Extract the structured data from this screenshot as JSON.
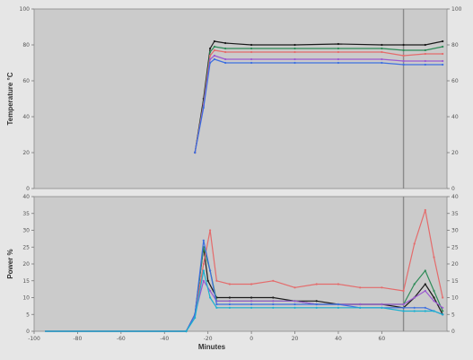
{
  "chart_data": [
    {
      "type": "line",
      "title": "",
      "xlabel": "",
      "ylabel": "Temperature °C",
      "ylim": [
        0,
        100
      ],
      "xlim": [
        -100,
        90
      ],
      "yticks": [
        0,
        20,
        40,
        60,
        80,
        100
      ],
      "ytick_labels": [
        "0",
        "20",
        "40",
        "60",
        "80",
        "100"
      ],
      "right_ytick_labels": [
        "0",
        "20",
        "40",
        "60",
        "80",
        "100"
      ],
      "vertical_marker_x": 70,
      "grid": false,
      "legend": "none",
      "series": [
        {
          "color": "#1a1a1a",
          "points": [
            [
              -26,
              20
            ],
            [
              -22,
              50
            ],
            [
              -19,
              78
            ],
            [
              -17,
              82
            ],
            [
              -12,
              81
            ],
            [
              0,
              80
            ],
            [
              20,
              80
            ],
            [
              40,
              80.5
            ],
            [
              60,
              80
            ],
            [
              70,
              80
            ],
            [
              80,
              80
            ],
            [
              88,
              82
            ]
          ]
        },
        {
          "color": "#2e8b57",
          "points": [
            [
              -26,
              20
            ],
            [
              -22,
              48
            ],
            [
              -19,
              76
            ],
            [
              -17,
              79
            ],
            [
              -12,
              78
            ],
            [
              0,
              78
            ],
            [
              20,
              78
            ],
            [
              40,
              78
            ],
            [
              60,
              78
            ],
            [
              70,
              77
            ],
            [
              80,
              77
            ],
            [
              88,
              79
            ]
          ]
        },
        {
          "color": "#e46b6b",
          "points": [
            [
              -26,
              20
            ],
            [
              -22,
              47
            ],
            [
              -19,
              74
            ],
            [
              -17,
              77
            ],
            [
              -12,
              76
            ],
            [
              0,
              76
            ],
            [
              20,
              76
            ],
            [
              40,
              76
            ],
            [
              60,
              76
            ],
            [
              70,
              74
            ],
            [
              80,
              75
            ],
            [
              88,
              75
            ]
          ]
        },
        {
          "color": "#9b59d0",
          "points": [
            [
              -26,
              20
            ],
            [
              -22,
              46
            ],
            [
              -19,
              72
            ],
            [
              -17,
              74
            ],
            [
              -12,
              72
            ],
            [
              0,
              72
            ],
            [
              20,
              72
            ],
            [
              40,
              72
            ],
            [
              60,
              72
            ],
            [
              70,
              71
            ],
            [
              80,
              71
            ],
            [
              88,
              71
            ]
          ]
        },
        {
          "color": "#3d6fe0",
          "points": [
            [
              -26,
              20
            ],
            [
              -22,
              45
            ],
            [
              -19,
              70
            ],
            [
              -17,
              72
            ],
            [
              -12,
              70
            ],
            [
              0,
              70
            ],
            [
              20,
              70
            ],
            [
              40,
              70
            ],
            [
              60,
              70
            ],
            [
              70,
              69
            ],
            [
              80,
              69
            ],
            [
              88,
              69
            ]
          ]
        }
      ]
    },
    {
      "type": "line",
      "title": "",
      "xlabel": "Minutes",
      "ylabel": "Power %",
      "ylim": [
        0,
        40
      ],
      "xlim": [
        -100,
        90
      ],
      "yticks": [
        0,
        5,
        10,
        15,
        20,
        25,
        30,
        35,
        40
      ],
      "ytick_labels": [
        "0",
        "5",
        "10",
        "15",
        "20",
        "25",
        "30",
        "35",
        "40"
      ],
      "right_ytick_labels": [
        "0",
        "5",
        "10",
        "15",
        "20",
        "25",
        "30",
        "35",
        "40"
      ],
      "xticks": [
        -100,
        -80,
        -60,
        -40,
        -20,
        0,
        20,
        40,
        60
      ],
      "xtick_labels": [
        "-100",
        "-80",
        "-60",
        "-40",
        "-20",
        "0",
        "20",
        "40",
        "60"
      ],
      "vertical_marker_x": 70,
      "grid": false,
      "legend": "none",
      "series": [
        {
          "color": "#1a1a1a",
          "points": [
            [
              -95,
              0
            ],
            [
              -30,
              0
            ],
            [
              -26,
              5
            ],
            [
              -22,
              25
            ],
            [
              -20,
              15
            ],
            [
              -16,
              10
            ],
            [
              -10,
              10
            ],
            [
              0,
              10
            ],
            [
              10,
              10
            ],
            [
              20,
              9
            ],
            [
              30,
              9
            ],
            [
              40,
              8
            ],
            [
              50,
              8
            ],
            [
              60,
              8
            ],
            [
              70,
              7
            ],
            [
              75,
              10
            ],
            [
              80,
              14
            ],
            [
              84,
              10
            ],
            [
              88,
              5
            ]
          ]
        },
        {
          "color": "#2e8b57",
          "points": [
            [
              -95,
              0
            ],
            [
              -30,
              0
            ],
            [
              -26,
              5
            ],
            [
              -22,
              25
            ],
            [
              -19,
              18
            ],
            [
              -16,
              9
            ],
            [
              -10,
              9
            ],
            [
              0,
              9
            ],
            [
              10,
              9
            ],
            [
              20,
              9
            ],
            [
              30,
              8
            ],
            [
              40,
              8
            ],
            [
              50,
              8
            ],
            [
              60,
              8
            ],
            [
              70,
              8
            ],
            [
              75,
              14
            ],
            [
              80,
              18
            ],
            [
              84,
              12
            ],
            [
              88,
              6
            ]
          ]
        },
        {
          "color": "#e46b6b",
          "points": [
            [
              -95,
              0
            ],
            [
              -30,
              0
            ],
            [
              -26,
              5
            ],
            [
              -22,
              20
            ],
            [
              -19,
              30
            ],
            [
              -16,
              15
            ],
            [
              -10,
              14
            ],
            [
              0,
              14
            ],
            [
              10,
              15
            ],
            [
              20,
              13
            ],
            [
              30,
              14
            ],
            [
              40,
              14
            ],
            [
              50,
              13
            ],
            [
              60,
              13
            ],
            [
              70,
              12
            ],
            [
              75,
              26
            ],
            [
              80,
              36
            ],
            [
              84,
              22
            ],
            [
              88,
              10
            ]
          ]
        },
        {
          "color": "#9b59d0",
          "points": [
            [
              -95,
              0
            ],
            [
              -30,
              0
            ],
            [
              -26,
              5
            ],
            [
              -22,
              15
            ],
            [
              -19,
              12
            ],
            [
              -16,
              9
            ],
            [
              -10,
              9
            ],
            [
              0,
              9
            ],
            [
              10,
              9
            ],
            [
              20,
              9
            ],
            [
              30,
              8
            ],
            [
              40,
              8
            ],
            [
              50,
              8
            ],
            [
              60,
              8
            ],
            [
              70,
              8
            ],
            [
              75,
              10
            ],
            [
              80,
              12
            ],
            [
              84,
              9
            ],
            [
              88,
              7
            ]
          ]
        },
        {
          "color": "#3d6fe0",
          "points": [
            [
              -95,
              0
            ],
            [
              -30,
              0
            ],
            [
              -26,
              5
            ],
            [
              -22,
              27
            ],
            [
              -19,
              18
            ],
            [
              -16,
              8
            ],
            [
              -10,
              8
            ],
            [
              0,
              8
            ],
            [
              10,
              8
            ],
            [
              20,
              8
            ],
            [
              30,
              8
            ],
            [
              40,
              8
            ],
            [
              50,
              7
            ],
            [
              60,
              7
            ],
            [
              70,
              7
            ],
            [
              75,
              7
            ],
            [
              80,
              7
            ],
            [
              84,
              6
            ],
            [
              88,
              5
            ]
          ]
        },
        {
          "color": "#1ab0d0",
          "points": [
            [
              -95,
              0
            ],
            [
              -30,
              0
            ],
            [
              -26,
              4
            ],
            [
              -22,
              18
            ],
            [
              -19,
              10
            ],
            [
              -16,
              7
            ],
            [
              -10,
              7
            ],
            [
              0,
              7
            ],
            [
              10,
              7
            ],
            [
              20,
              7
            ],
            [
              30,
              7
            ],
            [
              40,
              7
            ],
            [
              50,
              7
            ],
            [
              60,
              7
            ],
            [
              70,
              6
            ],
            [
              75,
              6
            ],
            [
              80,
              6
            ],
            [
              84,
              6
            ],
            [
              88,
              5
            ]
          ]
        }
      ]
    }
  ]
}
